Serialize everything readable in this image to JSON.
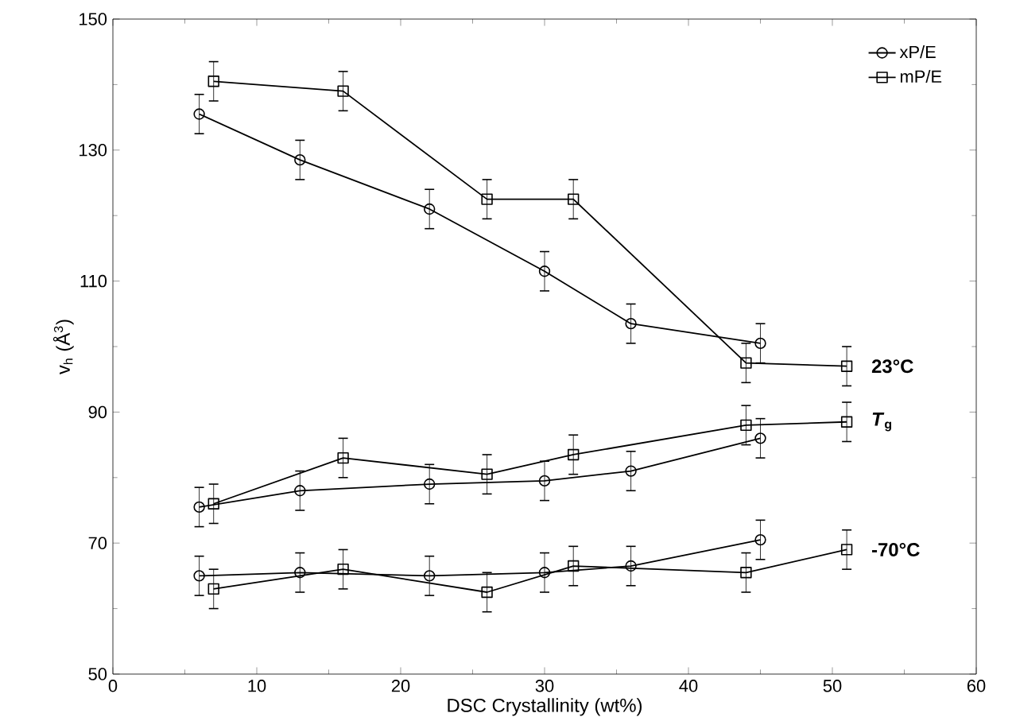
{
  "chart_data": {
    "type": "line",
    "xlabel": "DSC Crystallinity (wt%)",
    "ylabel": "v$_{h}$ (Å$^{3}$)",
    "xlim": [
      0,
      60
    ],
    "xticks": [
      0,
      10,
      20,
      30,
      40,
      50,
      60
    ],
    "ylim": [
      50,
      150
    ],
    "yticks": [
      50,
      70,
      90,
      110,
      130,
      150
    ],
    "grid": false,
    "legend": "top right",
    "line_style": "solid",
    "series": [
      {
        "name": "xP/E",
        "color": "#000000",
        "marker": "circle",
        "x": [
          6,
          13,
          22,
          30,
          36,
          45
        ],
        "values": [
          135.5,
          128.5,
          121,
          111.5,
          103.5,
          100.5
        ],
        "errors": [
          3,
          3,
          3,
          3,
          3,
          3
        ]
      },
      {
        "name": "mP/E",
        "color": "#000000",
        "marker": "square",
        "x": [
          7,
          16,
          26,
          32,
          44,
          51
        ],
        "values": [
          140.5,
          139,
          122.5,
          122.5,
          97.5,
          97
        ],
        "errors": [
          3,
          3,
          3,
          3,
          3,
          3
        ]
      },
      {
        "color": "#000000",
        "marker": "circle",
        "x": [
          6,
          13,
          22,
          30,
          36,
          45
        ],
        "values": [
          75.5,
          78,
          79,
          79.5,
          81,
          86
        ],
        "errors": [
          3,
          3,
          3,
          3,
          3,
          3
        ]
      },
      {
        "color": "#000000",
        "marker": "square",
        "x": [
          7,
          16,
          26,
          32,
          44,
          51
        ],
        "values": [
          76,
          83,
          80.5,
          83.5,
          88,
          88.5
        ],
        "errors": [
          3,
          3,
          3,
          3,
          3,
          3
        ]
      },
      {
        "color": "#000000",
        "marker": "circle",
        "x": [
          6,
          13,
          22,
          30,
          36,
          45
        ],
        "values": [
          65,
          65.5,
          65,
          65.5,
          66.5,
          70.5
        ],
        "errors": [
          3,
          3,
          3,
          3,
          3,
          3
        ]
      },
      {
        "color": "#000000",
        "marker": "square",
        "x": [
          7,
          16,
          26,
          32,
          44,
          51
        ],
        "values": [
          63,
          66,
          62.5,
          66.5,
          65.5,
          69
        ],
        "errors": [
          3,
          3,
          3,
          3,
          3,
          3
        ]
      }
    ],
    "annotations": [
      "23°C",
      "*T*$_{g}$",
      "-70°C"
    ]
  }
}
